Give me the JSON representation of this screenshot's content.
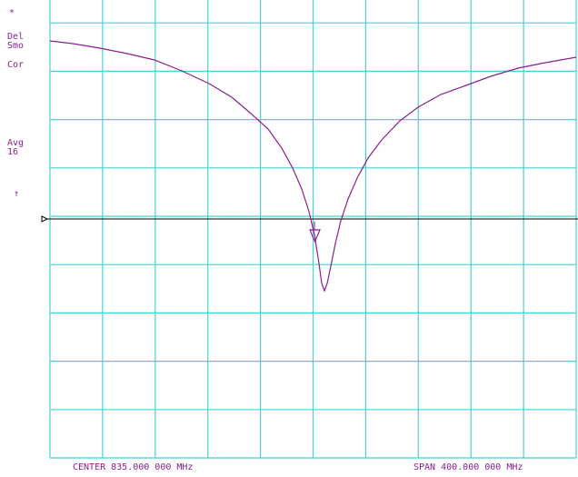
{
  "colors": {
    "grid": "#46d3d3",
    "trace": "#8a1f8f",
    "reference": "#000000",
    "background": "#ffffff"
  },
  "status": {
    "asterisk": "*",
    "line1": "Del",
    "line2": "Smo",
    "line3": "Cor",
    "avg_label": "Avg",
    "avg_count": "16",
    "arrow": "↑"
  },
  "footer": {
    "center": "CENTER 835.000 000 MHz",
    "span": "SPAN 400.000 000 MHz"
  },
  "icons": {
    "reference_marker": "reference-triangle-icon",
    "active_marker": "marker-triangle-icon",
    "status_arrow": "up-arrow-icon"
  }
}
